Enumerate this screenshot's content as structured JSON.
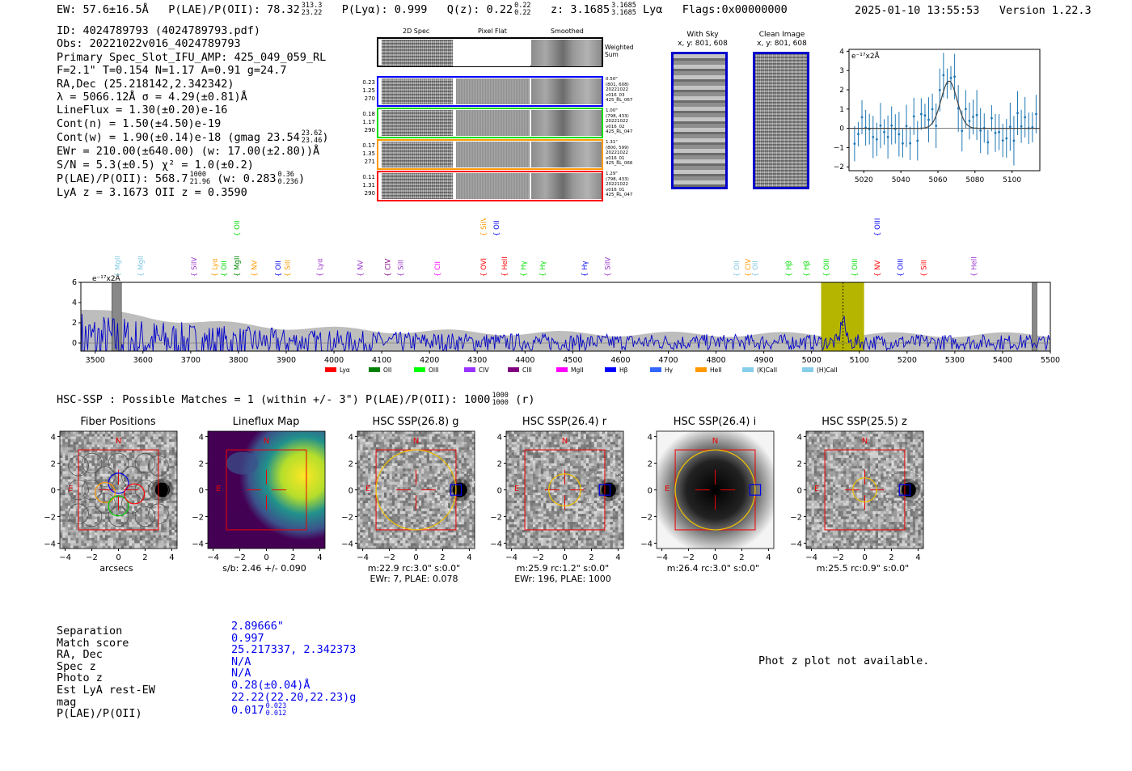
{
  "header": {
    "ew": "EW: 57.6±16.5Å",
    "plae_label": "P(LAE)/P(OII): 78.32",
    "plae_hi": "313.3",
    "plae_lo": "23.22",
    "plya": "P(Lyα): 0.999",
    "qz_label": "Q(z): 0.22",
    "qz_hi": "0.22",
    "qz_lo": "0.22",
    "z_label": "z: 3.1685",
    "z_hi": "3.1685",
    "z_lo": "3.1685",
    "z_line": "Lyα",
    "flags": "Flags:0x00000000",
    "timestamp": "2025-01-10 13:55:53",
    "version": "Version 1.22.3"
  },
  "info": {
    "id": "ID: 4024789793 (4024789793.pdf)",
    "obs": "Obs: 20221022v016_4024789793",
    "primary": "Primary Spec_Slot_IFU_AMP: 425_049_059_RL",
    "fit": "F=2.1\"  T=0.154  N=1.17  A=0.91  g=24.7",
    "radec": "RA,Dec (25.218142,2.342342)",
    "lambda": "λ = 5066.12Å  σ = 4.29(±0.81)Å",
    "lineflux": "LineFlux = 1.30(±0.20)e-16",
    "contn": "Cont(n) = 1.50(±4.50)e-19",
    "contw": "Cont(w) = 1.90(±0.14)e-18 (gmag 23.54",
    "contw_hi": "23.62",
    "contw_lo": "23.46",
    "contw_end": ")",
    "ewr": "EWr = 210.00(±640.00) (w: 17.00(±2.80))Å",
    "sn": "S/N = 5.3(±0.5)  χ² = 1.0(±0.2)",
    "plae": "P(LAE)/P(OII): 568.7",
    "plae_hi": "1000",
    "plae_lo": "21.96",
    "plae_w": "(w: 0.283",
    "plae_w_hi": "0.36",
    "plae_w_lo": "0.236",
    "plae_w_end": ")",
    "lyaz": "LyA z = 3.1673  OII z = 0.3590"
  },
  "cutouts": {
    "col_2d": "2D Spec",
    "col_flat": "Pixel Flat",
    "col_smooth": "Smoothed",
    "weighted": "Weighted Sum",
    "rows": [
      {
        "color": "#0000ff",
        "v1": "0.23",
        "v2": "1.25",
        "v3": "270",
        "m1": "0.50\"",
        "m2": "(801, 608)",
        "m3": "20221022",
        "m4": "v016_03",
        "m5": "425_RL_067"
      },
      {
        "color": "#00dd00",
        "v1": "0.18",
        "v2": "1.17",
        "v3": "290",
        "m1": "1.00\"",
        "m2": "(798, 433)",
        "m3": "20221022",
        "m4": "v016_02",
        "m5": "425_RL_047"
      },
      {
        "color": "#ff9900",
        "v1": "0.17",
        "v2": "1.35",
        "v3": "271",
        "m1": "1.31\"",
        "m2": "(800, 599)",
        "m3": "20221022",
        "m4": "v016_01",
        "m5": "425_RL_066"
      },
      {
        "color": "#ff0000",
        "v1": "0.11",
        "v2": "1.31",
        "v3": "290",
        "m1": "1.29\"",
        "m2": "(798, 433)",
        "m3": "20221022",
        "m4": "v016_01",
        "m5": "425_RL_047"
      }
    ],
    "with_sky": "With Sky",
    "with_sky_xy": "x, y: 801, 608",
    "clean": "Clean Image",
    "clean_xy": "x, y: 801, 608"
  },
  "line_fit_plot": {
    "ylabel": "e⁻¹⁷x2Å",
    "x_ticks": [
      "5020",
      "5040",
      "5060",
      "5080",
      "5100"
    ],
    "y_ticks": [
      "4",
      "3",
      "2",
      "1",
      "0",
      "−1",
      "−2"
    ]
  },
  "spectrum_lines": [
    {
      "name": "MgII",
      "w": 3552,
      "c": "#7ec8e3",
      "hi": false
    },
    {
      "name": "MgII",
      "w": 3600,
      "c": "#7ec8e3",
      "hi": false
    },
    {
      "name": "SiIV",
      "w": 3712,
      "c": "#9933cc",
      "hi": false
    },
    {
      "name": "Lyα",
      "w": 3755,
      "c": "#ff9900",
      "hi": false
    },
    {
      "name": "OII",
      "w": 3775,
      "c": "#00dd00",
      "hi": false
    },
    {
      "name": "OII",
      "w": 3802,
      "c": "#00dd00",
      "hi": true
    },
    {
      "name": "MgII",
      "w": 3802,
      "c": "#008800",
      "hi": false
    },
    {
      "name": "NV",
      "w": 3838,
      "c": "#ff9900",
      "hi": false
    },
    {
      "name": "OII",
      "w": 3888,
      "c": "#0000ee",
      "hi": false
    },
    {
      "name": "SiII",
      "w": 3908,
      "c": "#ff9900",
      "hi": false
    },
    {
      "name": "Lyα",
      "w": 3975,
      "c": "#9933cc",
      "hi": false
    },
    {
      "name": "NV",
      "w": 4060,
      "c": "#9933cc",
      "hi": false
    },
    {
      "name": "CIV",
      "w": 4118,
      "c": "#800080",
      "hi": false
    },
    {
      "name": "SiII",
      "w": 4145,
      "c": "#9933cc",
      "hi": false
    },
    {
      "name": "CII",
      "w": 4222,
      "c": "#ff00ff",
      "hi": false
    },
    {
      "name": "OVI",
      "w": 4318,
      "c": "#ff0000",
      "hi": false
    },
    {
      "name": "SiIV",
      "w": 4318,
      "c": "#ff9900",
      "hi": true
    },
    {
      "name": "OII",
      "w": 4345,
      "c": "#0000ee",
      "hi": true
    },
    {
      "name": "HeII",
      "w": 4362,
      "c": "#ff0000",
      "hi": false
    },
    {
      "name": "Hγ",
      "w": 4402,
      "c": "#00dd00",
      "hi": false
    },
    {
      "name": "Hγ",
      "w": 4442,
      "c": "#00dd00",
      "hi": false
    },
    {
      "name": "Hγ",
      "w": 4530,
      "c": "#0000ee",
      "hi": false
    },
    {
      "name": "SiIV",
      "w": 4578,
      "c": "#9933cc",
      "hi": false
    },
    {
      "name": "OII",
      "w": 4848,
      "c": "#7ec8e3",
      "hi": false
    },
    {
      "name": "CIV",
      "w": 4872,
      "c": "#ff9900",
      "hi": false
    },
    {
      "name": "OII",
      "w": 4887,
      "c": "#7ec8e3",
      "hi": false
    },
    {
      "name": "Hβ",
      "w": 4957,
      "c": "#00dd00",
      "hi": false
    },
    {
      "name": "Hβ",
      "w": 4995,
      "c": "#00dd00",
      "hi": false
    },
    {
      "name": "OIII",
      "w": 5036,
      "c": "#00dd00",
      "hi": false
    },
    {
      "name": "OIII",
      "w": 5095,
      "c": "#00dd00",
      "hi": false
    },
    {
      "name": "NV",
      "w": 5143,
      "c": "#ff0000",
      "hi": false
    },
    {
      "name": "OIII",
      "w": 5143,
      "c": "#0000ee",
      "hi": true
    },
    {
      "name": "OIII",
      "w": 5191,
      "c": "#0000ee",
      "hi": false
    },
    {
      "name": "SiII",
      "w": 5240,
      "c": "#ff0000",
      "hi": false
    },
    {
      "name": "HeII",
      "w": 5345,
      "c": "#9933cc",
      "hi": false
    }
  ],
  "chart_data": {
    "type": "line",
    "title": "",
    "xlabel": "",
    "ylabel": "e⁻¹⁷x2Å",
    "xlim": [
      3470,
      5500
    ],
    "ylim": [
      -0.8,
      6
    ],
    "x_ticks": [
      3500,
      3600,
      3700,
      3800,
      3900,
      4000,
      4100,
      4200,
      4300,
      4400,
      4500,
      4600,
      4700,
      4800,
      4900,
      5000,
      5100,
      5200,
      5300,
      5400,
      5500
    ],
    "y_ticks": [
      0,
      2,
      4,
      6
    ],
    "highlight_region": [
      5020,
      5110
    ],
    "emission_line": 5066,
    "masked_regions": [
      [
        3535,
        3555
      ],
      [
        5462,
        5472
      ]
    ],
    "legend": [
      {
        "name": "Lyα",
        "color": "#ff0000"
      },
      {
        "name": "OII",
        "color": "#008000"
      },
      {
        "name": "OIII",
        "color": "#00ff00"
      },
      {
        "name": "CIV",
        "color": "#9933ff"
      },
      {
        "name": "CIII",
        "color": "#800080"
      },
      {
        "name": "MgII",
        "color": "#ff00ff"
      },
      {
        "name": "Hβ",
        "color": "#0000ff"
      },
      {
        "name": "Hγ",
        "color": "#3366ff"
      },
      {
        "name": "HeII",
        "color": "#ff9900"
      },
      {
        "name": "(K)CaII",
        "color": "#87ceeb"
      },
      {
        "name": "(H)CaII",
        "color": "#87ceeb"
      }
    ]
  },
  "hsc": {
    "title": "HSC-SSP : Possible Matches = 1 (within +/- 3\")  P(LAE)/P(OII): 1000",
    "plae_hi": "1000",
    "plae_lo": "1000",
    "plae_end": "(r)",
    "panels": [
      {
        "title": "Fiber Positions",
        "cap1": "arcsecs",
        "cap2": ""
      },
      {
        "title": "Lineflux Map",
        "cap1": "s/b: 2.46 +/- 0.090",
        "cap2": ""
      },
      {
        "title": "HSC SSP(26.8) g",
        "cap1": "m:22.9 rc:3.0\"  s:0.0\"",
        "cap2": "EWr: 7, PLAE: 0.078"
      },
      {
        "title": "HSC SSP(26.4) r",
        "cap1": "m:25.9 rc:1.2\"  s:0.0\"",
        "cap2": "EWr: 196, PLAE: 1000"
      },
      {
        "title": "HSC SSP(26.4) i",
        "cap1": "m:26.4 rc:3.0\"  s:0.0\"",
        "cap2": ""
      },
      {
        "title": "HSC SSP(25.5) z",
        "cap1": "m:25.5 rc:0.9\"  s:0.0\"",
        "cap2": ""
      }
    ],
    "compass_n": "N",
    "compass_e": "E",
    "axis_ticks": [
      "4",
      "2",
      "0",
      "−2",
      "−4"
    ],
    "x_ticks": [
      "−4",
      "−2",
      "0",
      "2",
      "4"
    ]
  },
  "match": {
    "labels": [
      "Separation",
      "Match score",
      "RA, Dec",
      "Spec z",
      "Photo z",
      "Est LyA rest-EW",
      "mag",
      "P(LAE)/P(OII)"
    ],
    "values": [
      "2.89666\"",
      "0.997",
      "25.217337, 2.342373",
      "N/A",
      "N/A",
      "0.28(±0.04)Å",
      "22.22(22.20,22.23)g",
      "0.017"
    ],
    "plae_hi": "0.023",
    "plae_lo": "0.012",
    "photz_note": "Phot z plot not available."
  }
}
